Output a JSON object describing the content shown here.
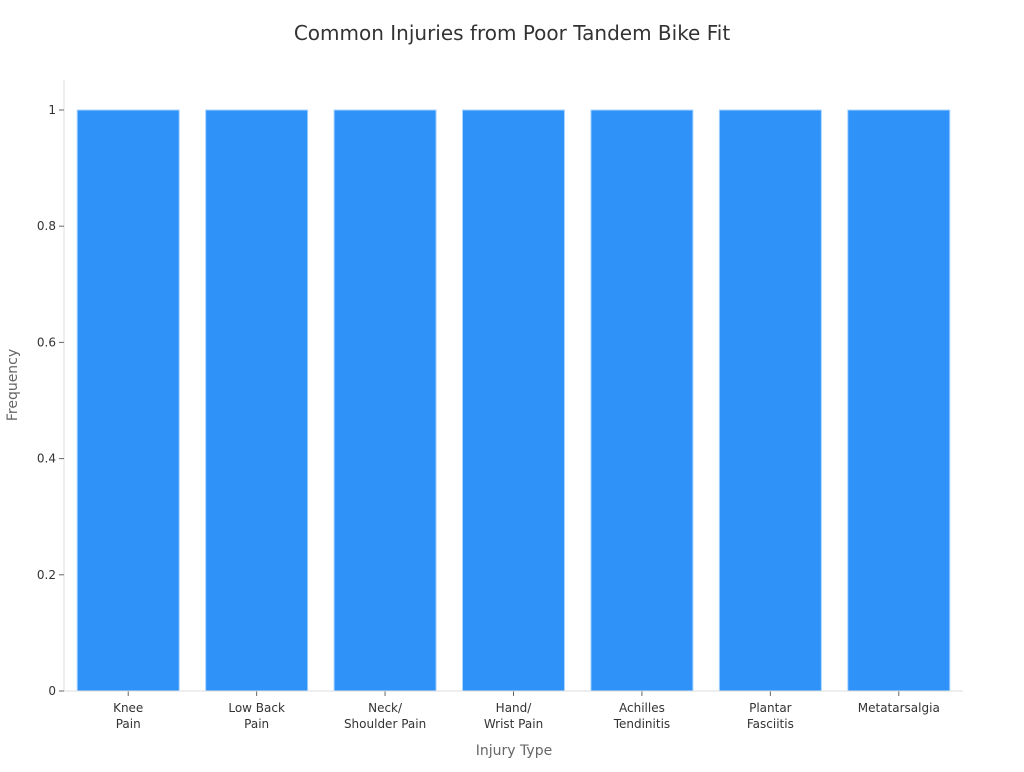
{
  "chart_data": {
    "type": "bar",
    "title": "Common Injuries from Poor Tandem Bike Fit",
    "xlabel": "Injury Type",
    "ylabel": "Frequency",
    "categories": [
      [
        "Knee",
        "Pain"
      ],
      [
        "Low Back",
        "Pain"
      ],
      [
        "Neck/",
        "Shoulder Pain"
      ],
      [
        "Hand/",
        "Wrist Pain"
      ],
      [
        "Achilles",
        "Tendinitis"
      ],
      [
        "Plantar",
        "Fasciitis"
      ],
      [
        "Metatarsalgia"
      ]
    ],
    "values": [
      1,
      1,
      1,
      1,
      1,
      1,
      1
    ],
    "ylim": [
      0,
      1.05
    ],
    "yticks": [
      0,
      0.2,
      0.4,
      0.6,
      0.8,
      1
    ],
    "ytick_labels": [
      "0",
      "0.2",
      "0.4",
      "0.6",
      "0.8",
      "1"
    ],
    "grid": false,
    "bar_color": "#2f92f8",
    "bar_edge_color": "#a8d4ff"
  }
}
